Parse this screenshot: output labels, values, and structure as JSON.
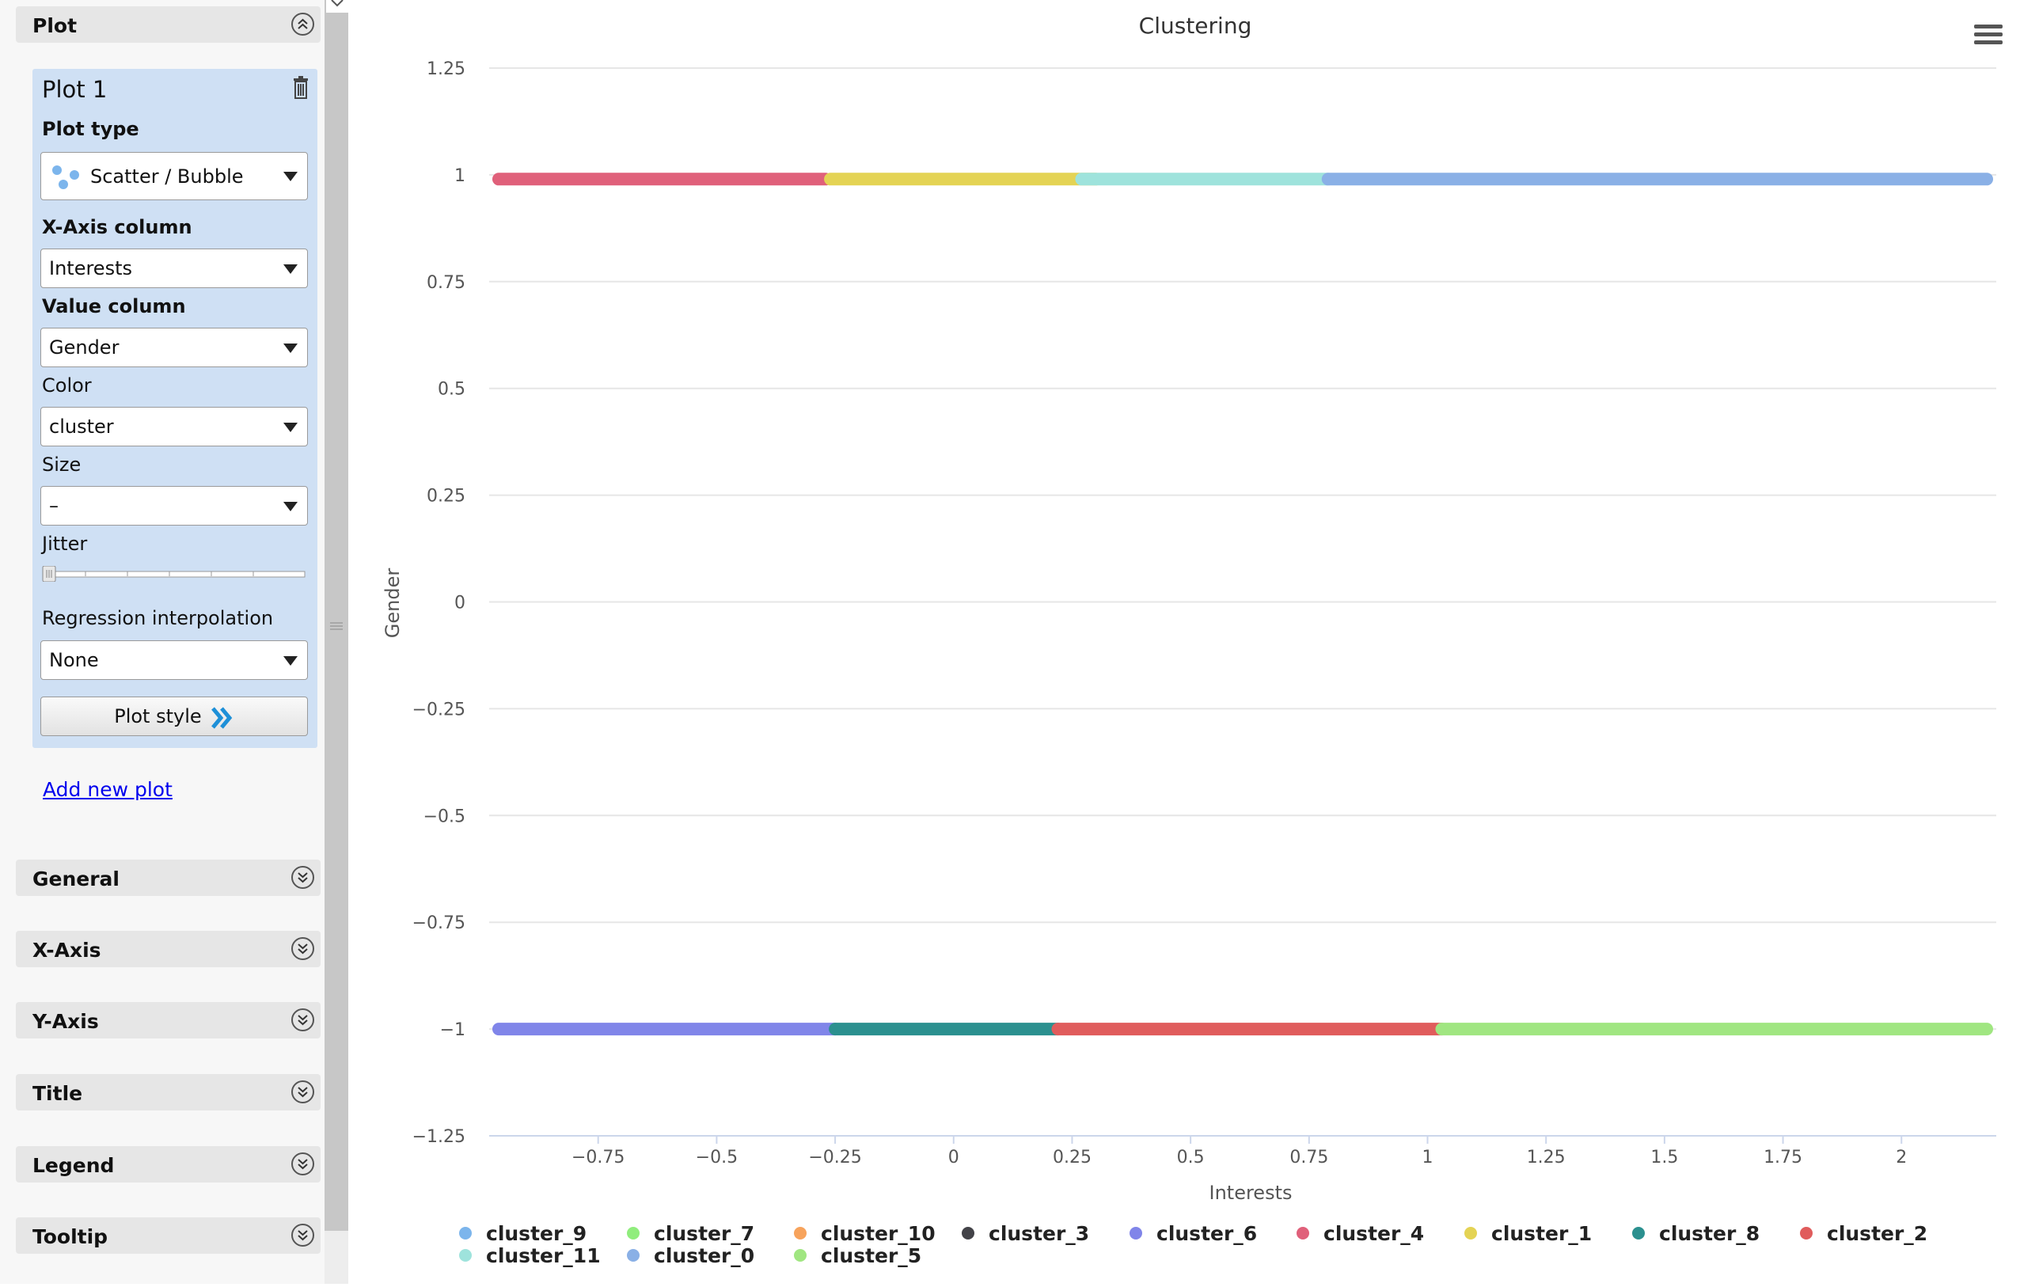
{
  "sidebar": {
    "plot_section": {
      "title": "Plot"
    },
    "plot_card": {
      "title": "Plot 1",
      "plot_type_label": "Plot type",
      "plot_type_value": "Scatter / Bubble",
      "x_axis_label": "X-Axis column",
      "x_axis_value": "Interests",
      "value_label": "Value column",
      "value_value": "Gender",
      "color_label": "Color",
      "color_value": "cluster",
      "size_label": "Size",
      "size_value": "–",
      "jitter_label": "Jitter",
      "jitter_value": 0,
      "regression_label": "Regression interpolation",
      "regression_value": "None",
      "plot_style_label": "Plot style"
    },
    "add_new_plot": "Add new plot",
    "sections": [
      "General",
      "X-Axis",
      "Y-Axis",
      "Title",
      "Legend",
      "Tooltip"
    ]
  },
  "chart_data": {
    "type": "scatter",
    "title": "Clustering",
    "xlabel": "Interests",
    "ylabel": "Gender",
    "xlim": [
      -0.98,
      2.2
    ],
    "ylim": [
      -1.25,
      1.25
    ],
    "x_ticks": [
      -0.75,
      -0.5,
      -0.25,
      0,
      0.25,
      0.5,
      0.75,
      1,
      1.25,
      1.5,
      1.75,
      2
    ],
    "x_tick_labels": [
      "−0.75",
      "−0.5",
      "−0.25",
      "0",
      "0.25",
      "0.5",
      "0.75",
      "1",
      "1.25",
      "1.5",
      "1.75",
      "2"
    ],
    "y_ticks": [
      1.25,
      1,
      0.75,
      0.5,
      0.25,
      0,
      -0.25,
      -0.5,
      -0.75,
      -1,
      -1.25
    ],
    "y_tick_labels": [
      "1.25",
      "1",
      "0.75",
      "0.5",
      "0.25",
      "0",
      "−0.25",
      "−0.5",
      "−0.75",
      "−1",
      "−1.25"
    ],
    "grid": true,
    "legend_position": "bottom",
    "series": [
      {
        "name": "cluster_9",
        "color": "#7cb5ec",
        "segments": []
      },
      {
        "name": "cluster_7",
        "color": "#90ed7d",
        "segments": []
      },
      {
        "name": "cluster_10",
        "color": "#f7a35c",
        "segments": []
      },
      {
        "name": "cluster_3",
        "color": "#434348",
        "segments": []
      },
      {
        "name": "cluster_6",
        "color": "#8085e9",
        "segments": [
          {
            "y": -1,
            "x0": -0.96,
            "x1": -0.25
          }
        ]
      },
      {
        "name": "cluster_4",
        "color": "#e0607a",
        "segments": [
          {
            "y": 0.99,
            "x0": -0.96,
            "x1": -0.27
          }
        ]
      },
      {
        "name": "cluster_1",
        "color": "#e4d354",
        "segments": [
          {
            "y": 0.99,
            "x0": -0.26,
            "x1": 0.3
          }
        ]
      },
      {
        "name": "cluster_8",
        "color": "#2b908f",
        "segments": [
          {
            "y": -1,
            "x0": -0.25,
            "x1": 0.22
          }
        ]
      },
      {
        "name": "cluster_2",
        "color": "#e05c5c",
        "segments": [
          {
            "y": -1,
            "x0": 0.22,
            "x1": 1.03
          }
        ]
      },
      {
        "name": "cluster_11",
        "color": "#9ee3dc",
        "segments": [
          {
            "y": 0.99,
            "x0": 0.27,
            "x1": 0.79
          }
        ]
      },
      {
        "name": "cluster_0",
        "color": "#8ab0e6",
        "segments": [
          {
            "y": 0.99,
            "x0": 0.79,
            "x1": 2.18
          }
        ]
      },
      {
        "name": "cluster_5",
        "color": "#a0e681",
        "segments": [
          {
            "y": -1,
            "x0": 1.03,
            "x1": 2.18
          }
        ]
      }
    ]
  }
}
